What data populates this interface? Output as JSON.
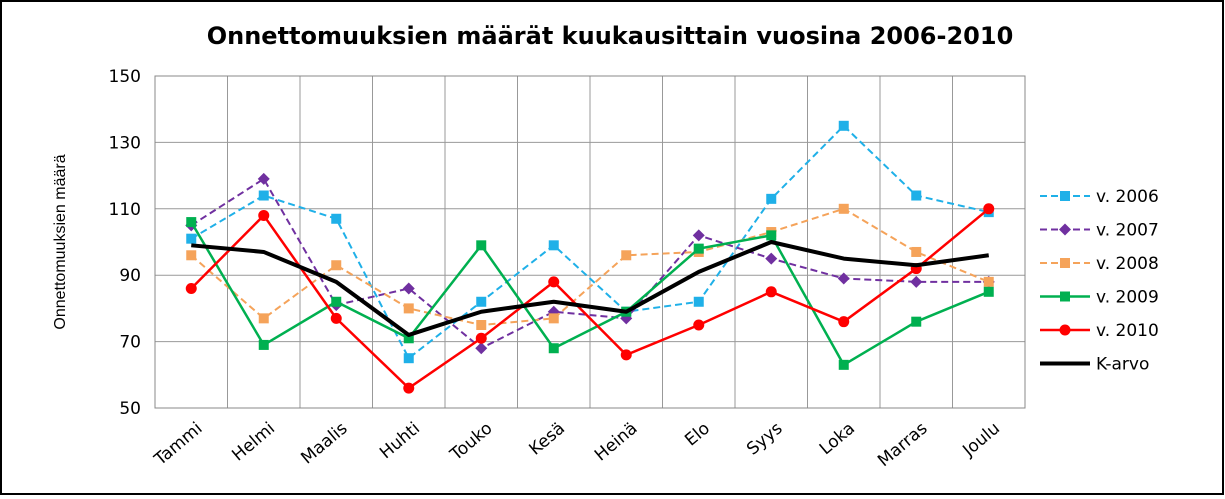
{
  "chart_data": {
    "type": "line",
    "title": "Onnettomuuksien määrät kuukausittain vuosina 2006-2010",
    "y_label": "Onnettomuuksien määrä",
    "categories": [
      "Tammi",
      "Helmi",
      "Maalis",
      "Huhti",
      "Touko",
      "Kesä",
      "Heinä",
      "Elo",
      "Syys",
      "Loka",
      "Marras",
      "Joulu"
    ],
    "series": [
      {
        "name": "v. 2006",
        "color": "#1fb0e8",
        "dash": true,
        "marker": "square",
        "width": 2,
        "values": [
          101,
          114,
          107,
          65,
          82,
          99,
          79,
          82,
          113,
          135,
          114,
          109
        ]
      },
      {
        "name": "v. 2007",
        "color": "#7030a0",
        "dash": true,
        "marker": "diamond",
        "width": 2,
        "values": [
          105,
          119,
          81,
          86,
          68,
          79,
          77,
          102,
          95,
          89,
          88,
          88
        ]
      },
      {
        "name": "v. 2008",
        "color": "#f5a35a",
        "dash": true,
        "marker": "square",
        "width": 2,
        "values": [
          96,
          77,
          93,
          80,
          75,
          77,
          96,
          97,
          103,
          110,
          97,
          88
        ]
      },
      {
        "name": "v. 2009",
        "color": "#00b050",
        "dash": false,
        "marker": "square",
        "width": 2.5,
        "values": [
          106,
          69,
          82,
          71,
          99,
          68,
          79,
          98,
          102,
          63,
          76,
          85
        ]
      },
      {
        "name": "v. 2010",
        "color": "#ff0000",
        "dash": false,
        "marker": "circle",
        "width": 2.5,
        "values": [
          86,
          108,
          77,
          56,
          71,
          88,
          66,
          75,
          85,
          76,
          92,
          110
        ]
      },
      {
        "name": "K-arvo",
        "color": "#000000",
        "dash": false,
        "marker": "none",
        "width": 4,
        "values": [
          99,
          97,
          88,
          72,
          79,
          82,
          79,
          91,
          100,
          95,
          93,
          96
        ]
      }
    ],
    "ylim": [
      50,
      150
    ],
    "yticks": [
      50,
      70,
      90,
      110,
      130,
      150
    ],
    "grid": true,
    "legend": "right"
  }
}
